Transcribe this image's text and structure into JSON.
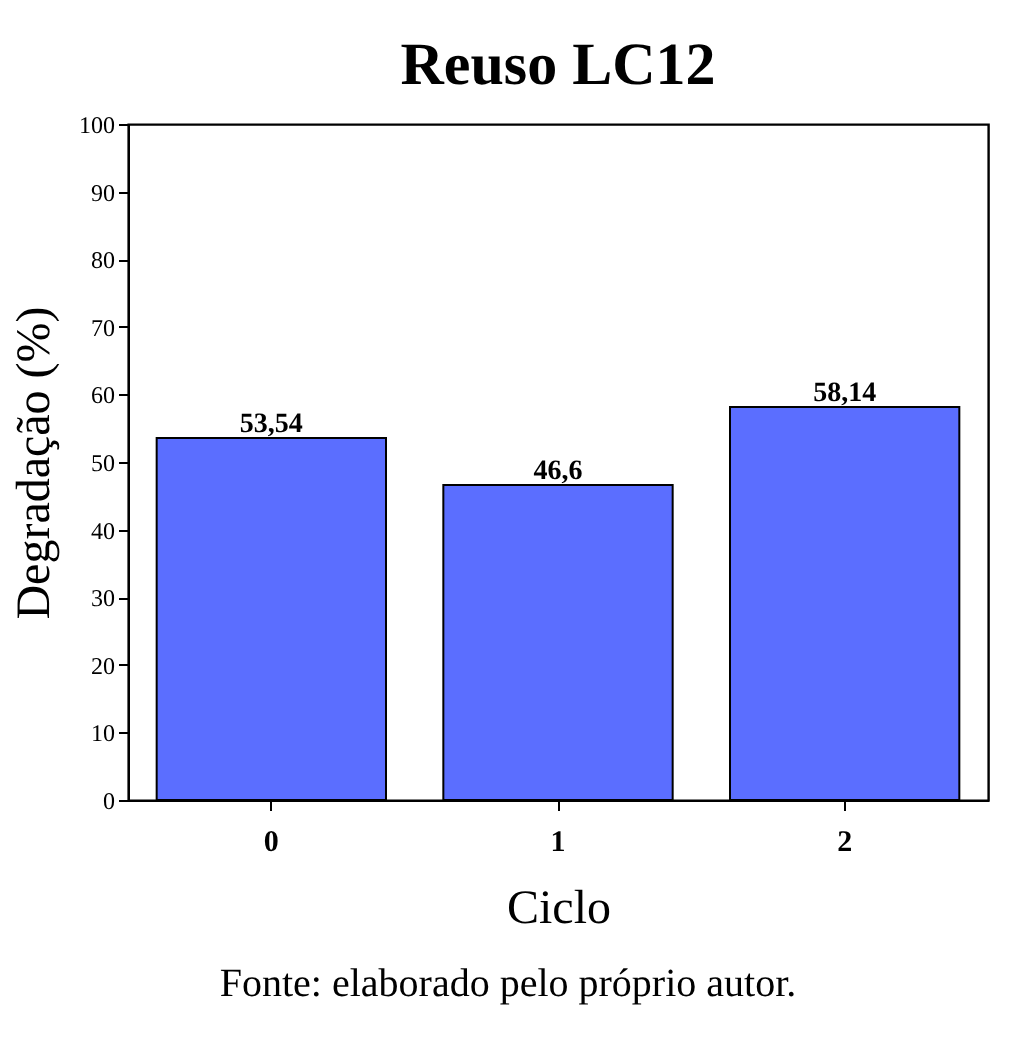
{
  "chart_data": {
    "type": "bar",
    "title": "Reuso LC12",
    "xlabel": "Ciclo",
    "ylabel": "Degradação (%)",
    "categories": [
      "0",
      "1",
      "2"
    ],
    "values": [
      53.54,
      46.6,
      58.14
    ],
    "value_labels": [
      "53,54",
      "46,6",
      "58,14"
    ],
    "color": "#5b6eff",
    "ylim": [
      0,
      100
    ],
    "yticks": [
      0,
      10,
      20,
      30,
      40,
      50,
      60,
      70,
      80,
      90,
      100
    ],
    "grid": false,
    "annotations": [
      "Fonte: elaborado pelo próprio autor."
    ]
  }
}
